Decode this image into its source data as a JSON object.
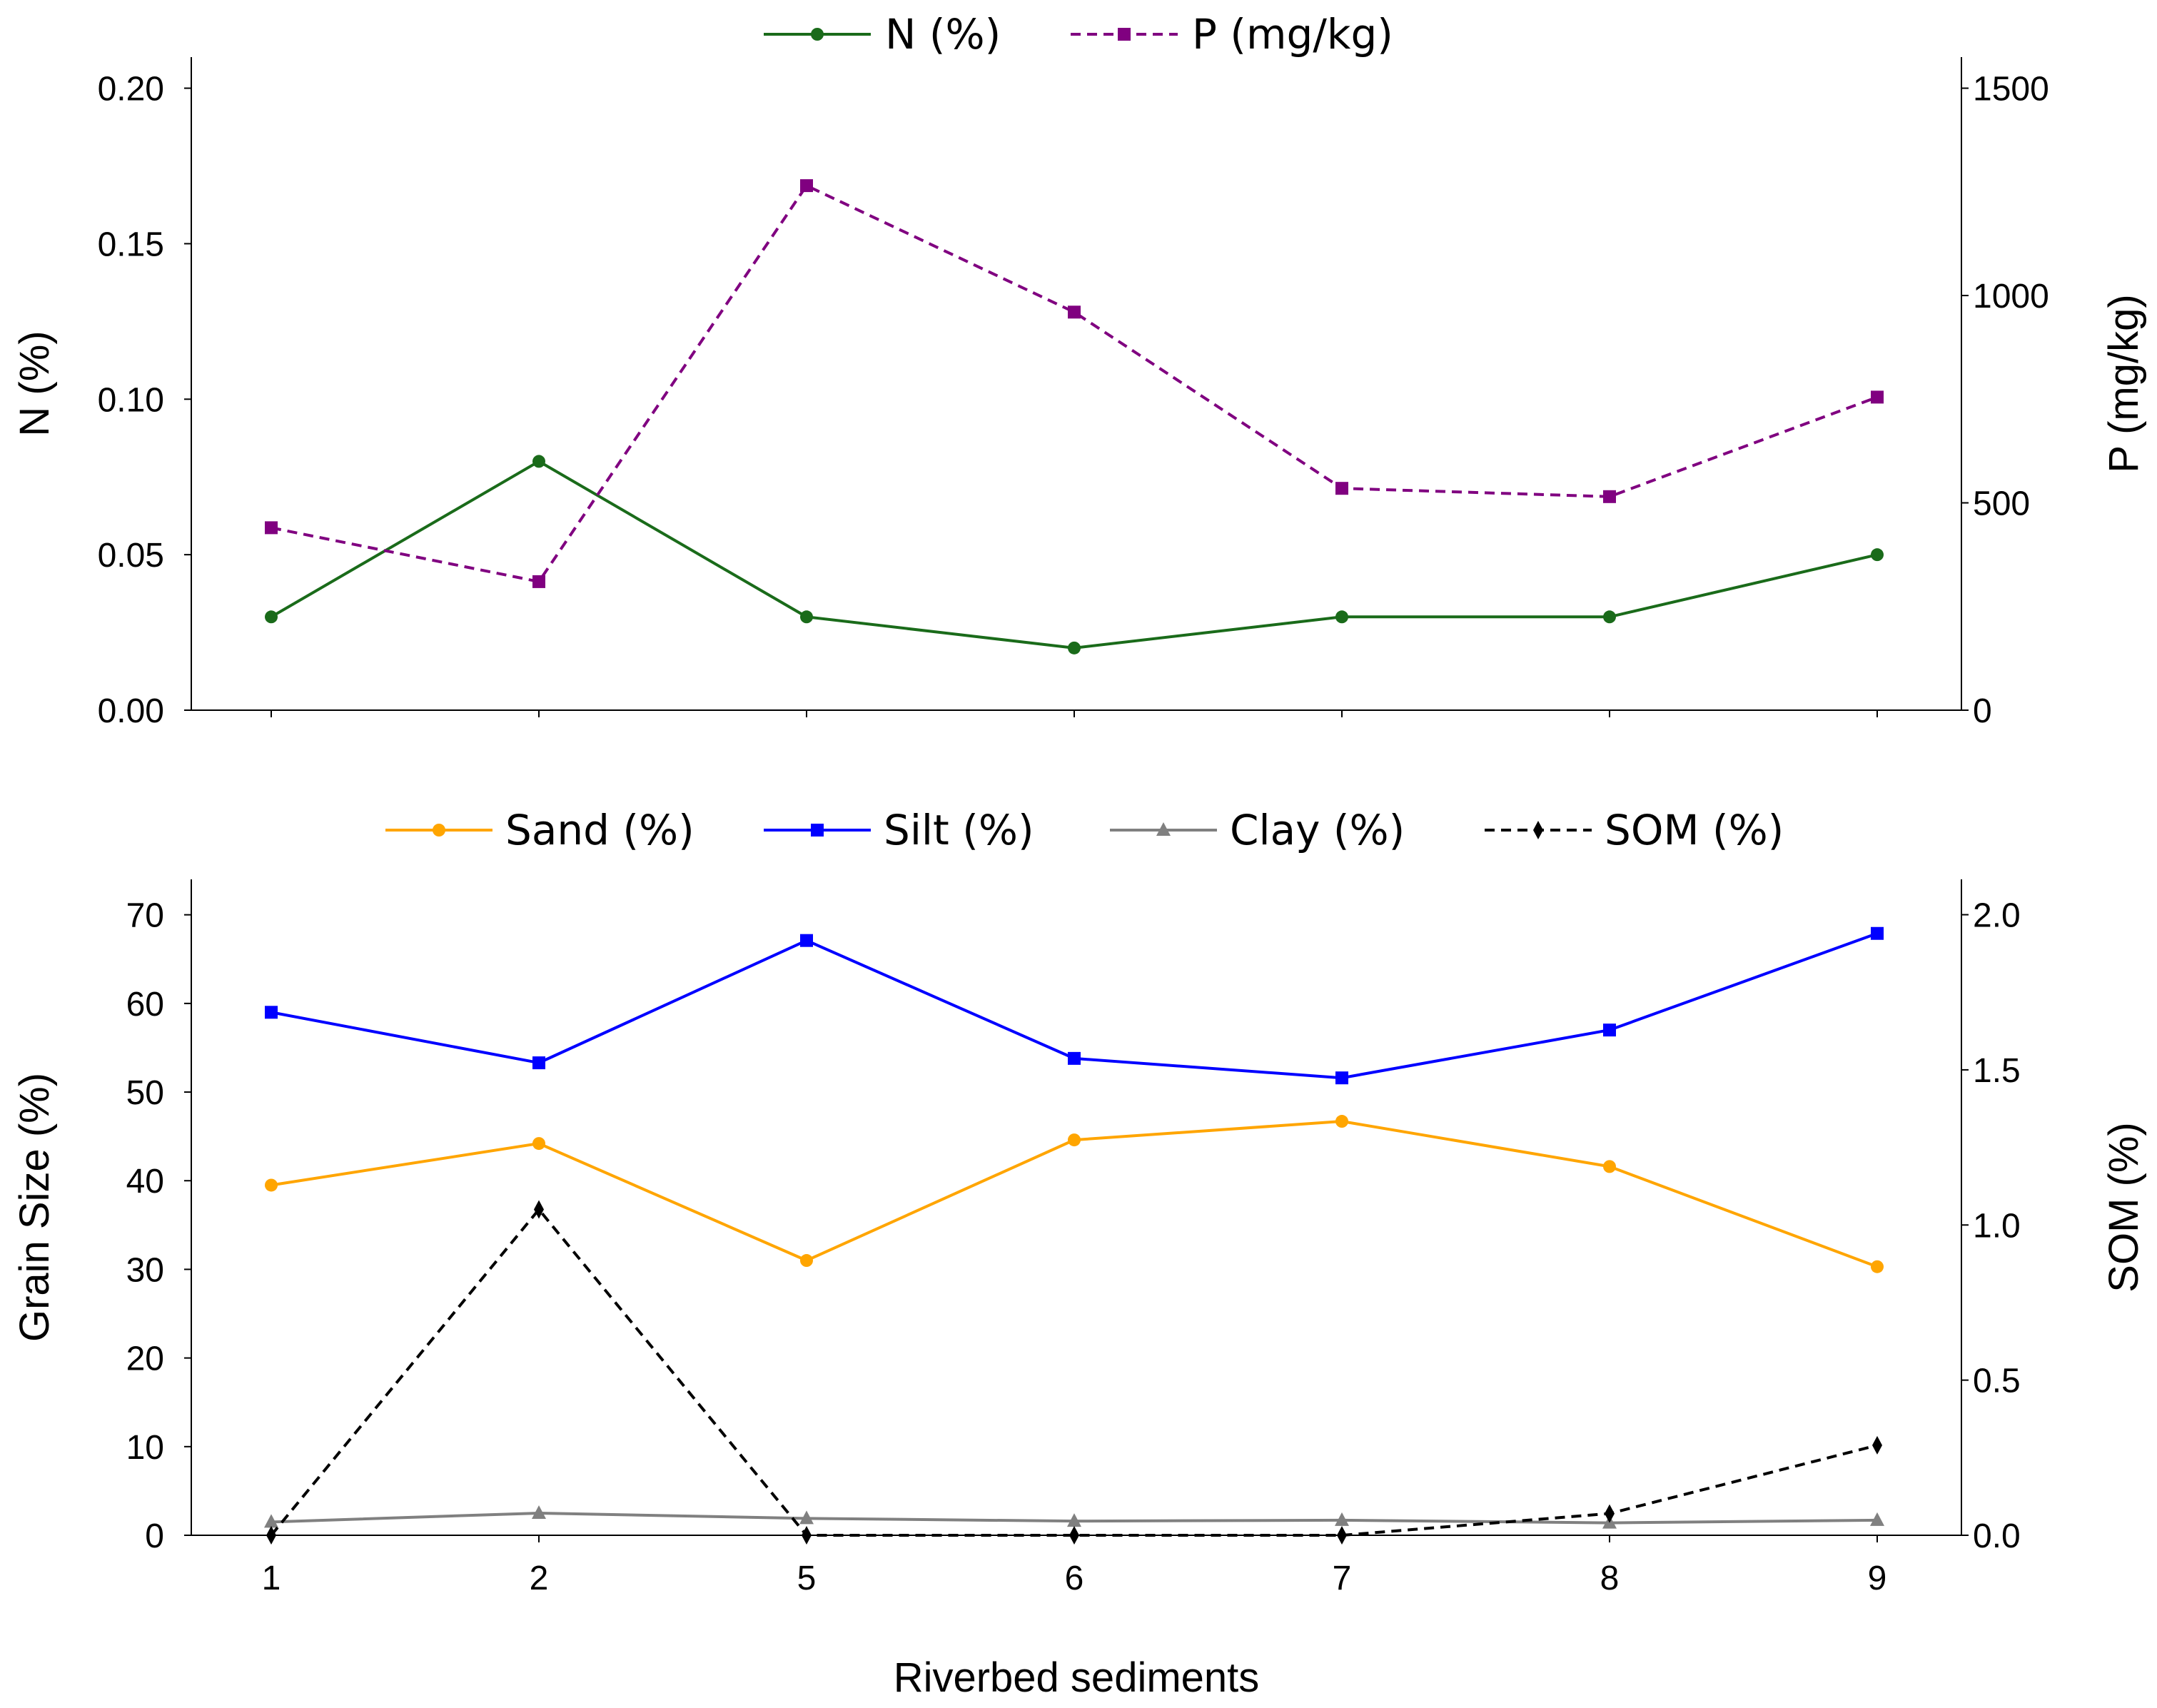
{
  "chart_data": [
    {
      "type": "line",
      "name": "nutrients",
      "categories": [
        "1",
        "2",
        "5",
        "6",
        "7",
        "8",
        "9"
      ],
      "series": [
        {
          "name": "N (%)",
          "axis": "left",
          "color": "#1a6b1a",
          "marker": "circle",
          "dash": "solid",
          "values": [
            0.03,
            0.08,
            0.03,
            0.02,
            0.03,
            0.03,
            0.05
          ]
        },
        {
          "name": "P (mg/kg)",
          "axis": "right",
          "color": "#800080",
          "marker": "square",
          "dash": "dashed",
          "values": [
            440,
            310,
            1265,
            960,
            535,
            515,
            755
          ]
        }
      ],
      "left_axis": {
        "label": "N  (%)",
        "ylim": [
          0,
          0.21
        ],
        "ticks": [
          "0.00",
          "0.05",
          "0.10",
          "0.15",
          "0.20"
        ],
        "tick_values": [
          0,
          0.05,
          0.1,
          0.15,
          0.2
        ]
      },
      "right_axis": {
        "label": "P  (mg/kg)",
        "ylim": [
          0,
          1575
        ],
        "ticks": [
          "0",
          "500",
          "1000",
          "1500"
        ],
        "tick_values": [
          0,
          500,
          1000,
          1500
        ]
      },
      "legend_position": "top-center",
      "grid": false
    },
    {
      "type": "line",
      "name": "grain-size",
      "categories": [
        "1",
        "2",
        "5",
        "6",
        "7",
        "8",
        "9"
      ],
      "series": [
        {
          "name": "Sand (%)",
          "axis": "left",
          "color": "#ffa500",
          "marker": "circle",
          "dash": "solid",
          "values": [
            39.5,
            44.2,
            31.0,
            44.6,
            46.7,
            41.6,
            30.3
          ]
        },
        {
          "name": "Silt (%)",
          "axis": "left",
          "color": "#0000ff",
          "marker": "square",
          "dash": "solid",
          "values": [
            59.0,
            53.3,
            67.1,
            53.8,
            51.6,
            57.0,
            67.9
          ]
        },
        {
          "name": "Clay (%)",
          "axis": "left",
          "color": "#808080",
          "marker": "triangle",
          "dash": "solid",
          "values": [
            1.5,
            2.5,
            1.9,
            1.6,
            1.7,
            1.4,
            1.7
          ]
        },
        {
          "name": "SOM (%)",
          "axis": "right",
          "color": "#000000",
          "marker": "diamond",
          "dash": "dashed",
          "values": [
            0.0,
            1.05,
            0.0,
            0.0,
            0.0,
            0.07,
            0.29
          ]
        }
      ],
      "left_axis": {
        "label": "Grain Size  (%)",
        "ylim": [
          0,
          74
        ],
        "ticks": [
          "0",
          "10",
          "20",
          "30",
          "40",
          "50",
          "60",
          "70"
        ],
        "tick_values": [
          0,
          10,
          20,
          30,
          40,
          50,
          60,
          70
        ]
      },
      "right_axis": {
        "label": "SOM  (%)",
        "ylim": [
          0,
          2.114
        ],
        "ticks": [
          "0.0",
          "0.5",
          "1.0",
          "1.5",
          "2.0"
        ],
        "tick_values": [
          0,
          0.5,
          1.0,
          1.5,
          2.0
        ]
      },
      "xlabel": "Riverbed sediments",
      "legend_position": "top-center",
      "grid": false
    }
  ]
}
